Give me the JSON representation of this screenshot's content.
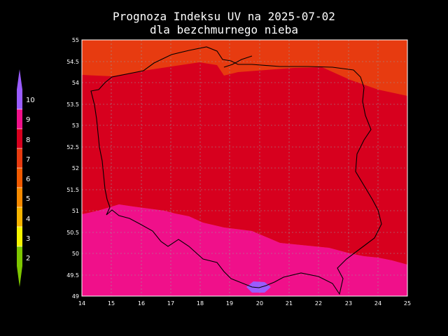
{
  "title": "Prognoza Indeksu UV na 2025-07-02",
  "subtitle": "dla bezchmurnego nieba",
  "legend": {
    "colors": [
      "#7ec600",
      "#f5f500",
      "#f5b400",
      "#f58a00",
      "#f05a00",
      "#e73b10",
      "#d7001e",
      "#f0108a",
      "#9a5cff"
    ],
    "labels": [
      "2",
      "3",
      "4",
      "5",
      "6",
      "7",
      "8",
      "9",
      "10"
    ]
  },
  "map": {
    "x_ticks": [
      "14",
      "15",
      "16",
      "17",
      "18",
      "19",
      "20",
      "21",
      "22",
      "23",
      "24",
      "25"
    ],
    "y_ticks": [
      "49",
      "49.5",
      "50",
      "50.5",
      "51",
      "51.5",
      "52",
      "52.5",
      "53",
      "53.5",
      "54",
      "54.5",
      "55"
    ],
    "xlim": [
      14,
      25
    ],
    "ylim": [
      49,
      55
    ]
  }
}
